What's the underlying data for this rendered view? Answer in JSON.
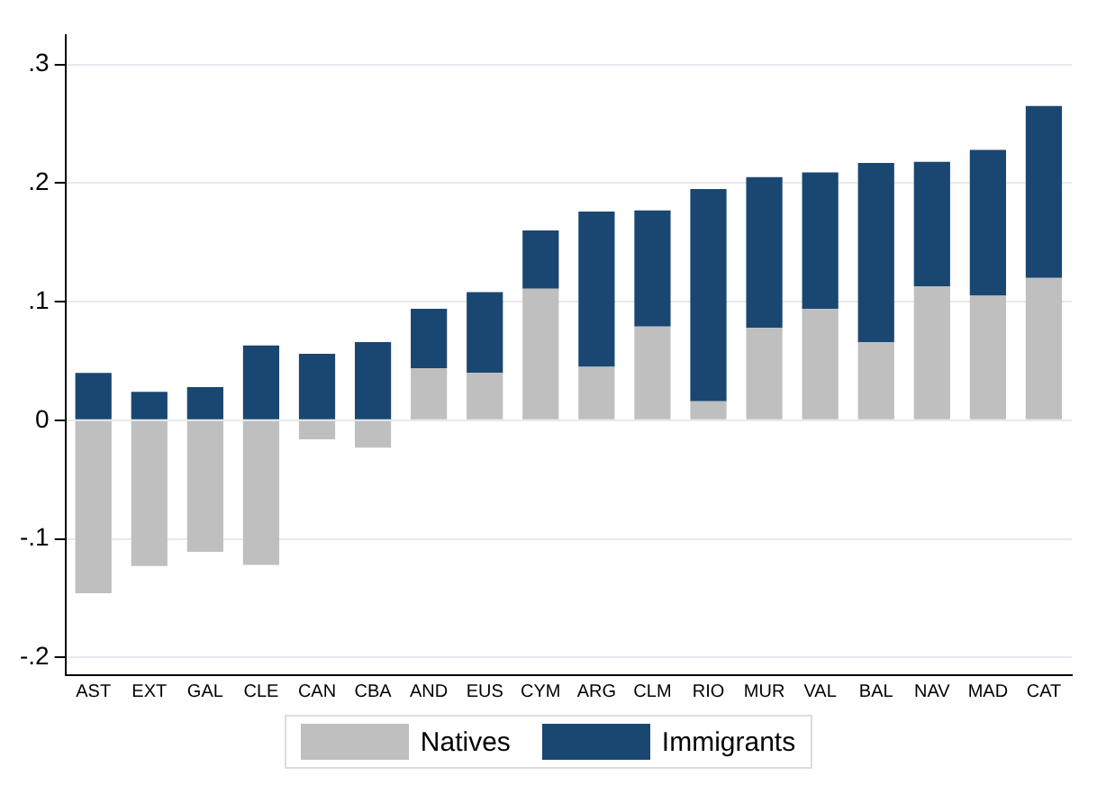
{
  "chart_data": {
    "type": "bar",
    "stacked": true,
    "categories": [
      "AST",
      "EXT",
      "GAL",
      "CLE",
      "CAN",
      "CBA",
      "AND",
      "EUS",
      "CYM",
      "ARG",
      "CLM",
      "RIO",
      "MUR",
      "VAL",
      "BAL",
      "NAV",
      "MAD",
      "CAT"
    ],
    "series": [
      {
        "name": "Natives",
        "color": "#bfbfbf",
        "values": [
          -0.146,
          -0.123,
          -0.111,
          -0.122,
          -0.016,
          -0.023,
          0.044,
          0.04,
          0.111,
          0.045,
          0.079,
          0.016,
          0.078,
          0.094,
          0.066,
          0.113,
          0.105,
          0.12
        ]
      },
      {
        "name": "Immigrants",
        "color": "#1a4771",
        "values": [
          0.04,
          0.024,
          0.028,
          0.063,
          0.056,
          0.066,
          0.05,
          0.068,
          0.049,
          0.131,
          0.098,
          0.179,
          0.127,
          0.115,
          0.151,
          0.105,
          0.123,
          0.145
        ]
      }
    ],
    "ylim": [
      -0.215,
      0.325
    ],
    "yticks": [
      {
        "value": -0.2,
        "label": "-.2"
      },
      {
        "value": -0.1,
        "label": "-.1"
      },
      0,
      {
        "value": 0.1,
        "label": ".1"
      },
      {
        "value": 0.2,
        "label": ".2"
      },
      {
        "value": 0.3,
        "label": ".3"
      }
    ],
    "grid": "y",
    "legend": "bottom"
  }
}
